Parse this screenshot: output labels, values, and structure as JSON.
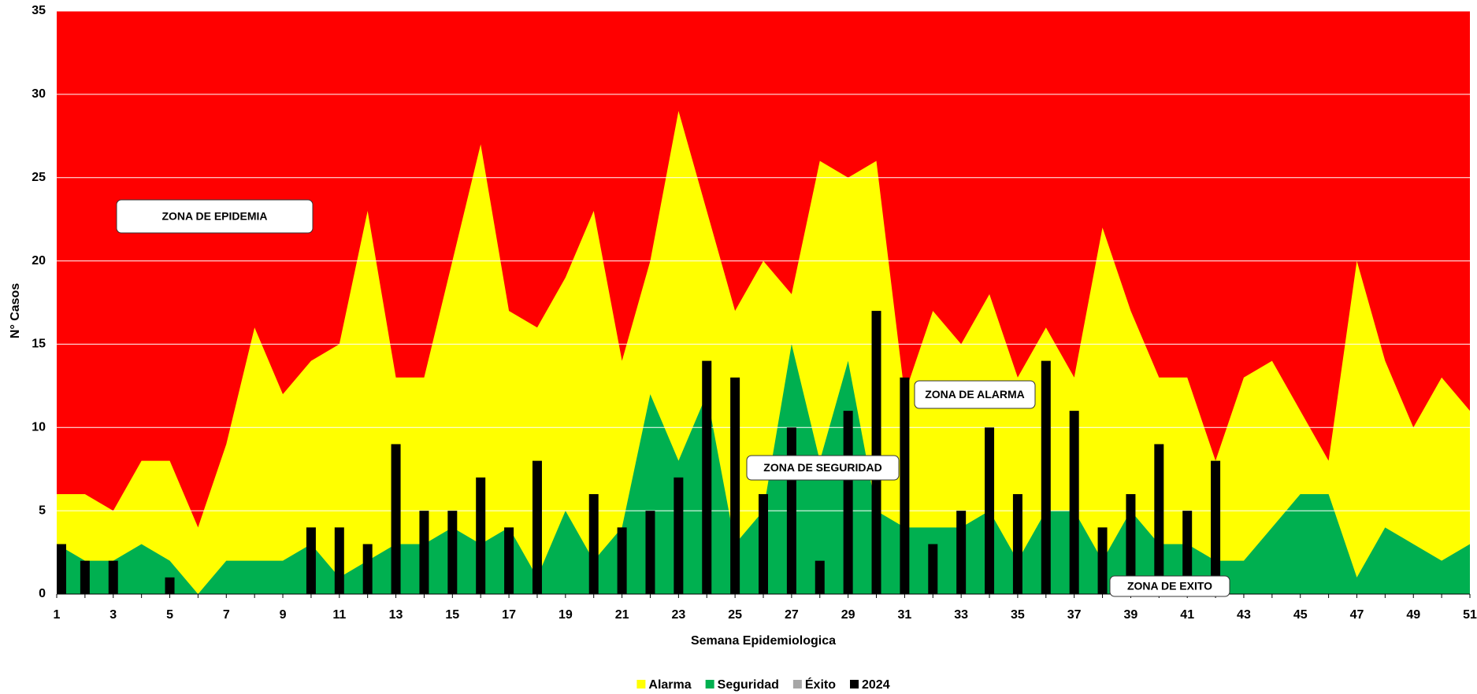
{
  "chart_data": {
    "type": "endemic_channel",
    "x_label": "Semana Epidemiologica",
    "y_label": "N° Casos",
    "categories": [
      1,
      null,
      3,
      null,
      5,
      null,
      7,
      null,
      9,
      null,
      11,
      null,
      13,
      null,
      15,
      null,
      17,
      null,
      19,
      null,
      21,
      null,
      23,
      null,
      25,
      null,
      27,
      null,
      29,
      null,
      31,
      null,
      33,
      null,
      35,
      null,
      37,
      null,
      39,
      null,
      41,
      null,
      43,
      null,
      45,
      null,
      47,
      null,
      49,
      null,
      51
    ],
    "background_color": "#ff0000",
    "grid": true,
    "grid_color": "#ffffff",
    "ylim": [
      0,
      35
    ],
    "yticks": [
      0,
      5,
      10,
      15,
      20,
      25,
      30,
      35
    ],
    "legend": "bottom",
    "series": [
      {
        "name": "Alarma",
        "kind": "area",
        "color": "#ffff00",
        "values": [
          6,
          6,
          5,
          8,
          8,
          4,
          9,
          16,
          12,
          14,
          15,
          23,
          13,
          13,
          20,
          27,
          17,
          16,
          19,
          23,
          14,
          20,
          29,
          23,
          17,
          20,
          18,
          26,
          25,
          26,
          12,
          17,
          15,
          18,
          13,
          16,
          13,
          22,
          17,
          13,
          13,
          8,
          13,
          14,
          11,
          8,
          20,
          14,
          10,
          13,
          11
        ]
      },
      {
        "name": "Seguridad",
        "kind": "area",
        "color": "#00b050",
        "values": [
          3,
          2,
          2,
          3,
          2,
          0,
          2,
          2,
          2,
          3,
          1,
          2,
          3,
          3,
          4,
          3,
          4,
          1,
          5,
          2,
          4,
          12,
          8,
          12,
          3,
          5,
          15,
          8,
          14,
          5,
          4,
          4,
          4,
          5,
          2,
          5,
          5,
          2,
          5,
          3,
          3,
          2,
          2,
          4,
          6,
          6,
          1,
          4,
          3,
          2,
          3
        ]
      },
      {
        "name": "Éxito",
        "kind": "area",
        "color": "#a6a6a6",
        "values": [
          0,
          0,
          0,
          0,
          0,
          0,
          0,
          0,
          0,
          0,
          0,
          0,
          0,
          0,
          0,
          0,
          0,
          0,
          0,
          0,
          0,
          0,
          0,
          0,
          0,
          0,
          0,
          0,
          0,
          0,
          0,
          0,
          0,
          0,
          0,
          0,
          0,
          0,
          0,
          0,
          0,
          0,
          0,
          0,
          0,
          0,
          0,
          0,
          0,
          0,
          0
        ]
      },
      {
        "name": "2024",
        "kind": "bar",
        "color": "#000000",
        "values": [
          3,
          2,
          2,
          null,
          1,
          null,
          null,
          null,
          null,
          4,
          4,
          3,
          9,
          5,
          5,
          7,
          4,
          8,
          null,
          6,
          4,
          5,
          7,
          14,
          13,
          6,
          10,
          2,
          11,
          17,
          13,
          3,
          5,
          10,
          6,
          14,
          11,
          4,
          6,
          9,
          5,
          8,
          null,
          null,
          null,
          null,
          null,
          null,
          null,
          null,
          null
        ]
      }
    ],
    "annotations": [
      "ZONA DE EPIDEMIA",
      "ZONA DE ALARMA",
      "ZONA DE SEGURIDAD",
      "ZONA DE EXITO"
    ]
  }
}
